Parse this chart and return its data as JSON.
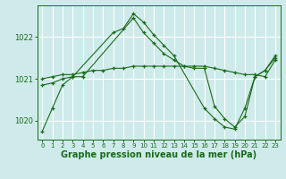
{
  "background_color": "#ceeaea",
  "grid_color": "#ffffff",
  "line_color": "#1a6b1a",
  "xlabel": "Graphe pression niveau de la mer (hPa)",
  "xlabel_fontsize": 7,
  "xlim": [
    -0.5,
    23.5
  ],
  "ylim": [
    1019.55,
    1022.75
  ],
  "yticks": [
    1020,
    1021,
    1022
  ],
  "xticks": [
    0,
    1,
    2,
    3,
    4,
    5,
    6,
    7,
    8,
    9,
    10,
    11,
    12,
    13,
    14,
    15,
    16,
    17,
    18,
    19,
    20,
    21,
    22,
    23
  ],
  "series1_x": [
    0,
    1,
    2,
    3,
    4,
    5,
    6,
    7,
    8,
    9,
    10,
    11,
    12,
    13,
    14,
    15,
    16,
    17,
    18,
    19,
    20,
    21,
    22,
    23
  ],
  "series1_y": [
    1021.0,
    1021.05,
    1021.1,
    1021.1,
    1021.15,
    1021.2,
    1021.2,
    1021.25,
    1021.25,
    1021.3,
    1021.3,
    1021.3,
    1021.3,
    1021.3,
    1021.3,
    1021.3,
    1021.3,
    1021.25,
    1021.2,
    1021.15,
    1021.1,
    1021.1,
    1021.05,
    1021.45
  ],
  "series2_x": [
    0,
    1,
    2,
    3,
    4,
    9,
    10,
    11,
    12,
    13,
    14,
    15,
    16,
    17,
    18,
    19,
    20,
    21,
    22,
    23
  ],
  "series2_y": [
    1020.85,
    1020.9,
    1021.0,
    1021.05,
    1021.05,
    1022.45,
    1022.1,
    1021.85,
    1021.6,
    1021.45,
    1021.3,
    1021.25,
    1021.25,
    1020.35,
    1020.05,
    1019.85,
    1020.1,
    1021.05,
    1021.2,
    1021.55
  ],
  "series3_x": [
    0,
    1,
    2,
    3,
    7,
    8,
    9,
    10,
    11,
    12,
    13,
    16,
    17,
    18,
    19,
    20,
    21,
    22,
    23
  ],
  "series3_y": [
    1019.75,
    1020.3,
    1020.85,
    1021.05,
    1022.1,
    1022.2,
    1022.55,
    1022.35,
    1022.05,
    1021.8,
    1021.55,
    1020.3,
    1020.05,
    1019.85,
    1019.8,
    1020.3,
    1021.05,
    1021.2,
    1021.5
  ]
}
